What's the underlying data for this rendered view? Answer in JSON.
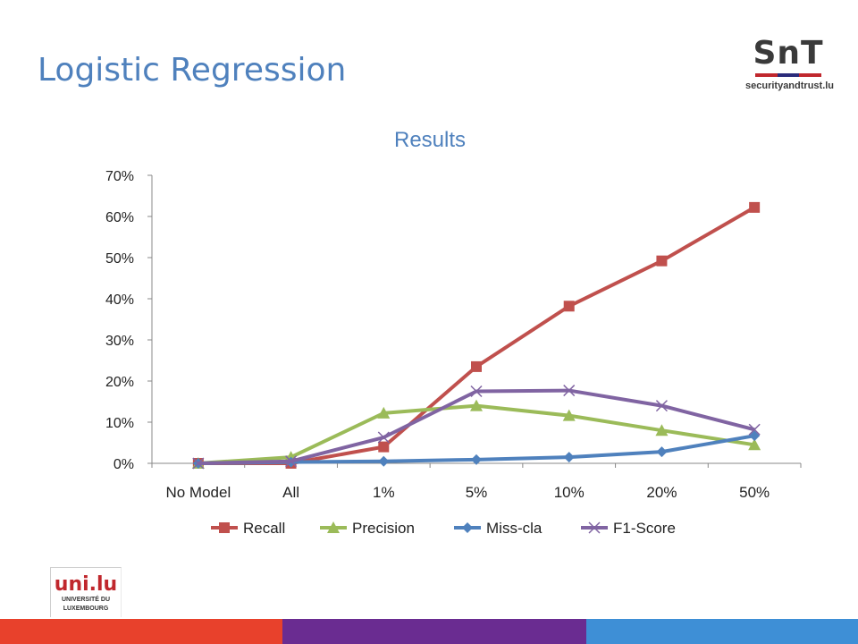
{
  "slide": {
    "title": "Logistic Regression",
    "snt_logo_text": "SnT",
    "snt_logo_url": "securityandtrust.lu",
    "uni_logo_text": "uni.lu",
    "uni_logo_sub1": "UNIVERSITÉ DU",
    "uni_logo_sub2": "LUXEMBOURG",
    "footer_colors": [
      "#e8412c",
      "#6a2c91",
      "#3e8fd6"
    ]
  },
  "chart_data": {
    "type": "line",
    "title": "Results",
    "xlabel": "",
    "ylabel": "",
    "categories": [
      "No Model",
      "All",
      "1%",
      "5%",
      "10%",
      "20%",
      "50%"
    ],
    "ylim": [
      0,
      70
    ],
    "yticks": [
      "0%",
      "10%",
      "20%",
      "30%",
      "40%",
      "50%",
      "60%",
      "70%"
    ],
    "legend_position": "bottom",
    "grid": false,
    "series": [
      {
        "name": "Recall",
        "color": "#c0504d",
        "marker": "square",
        "values": [
          0,
          0,
          4,
          23.5,
          38.2,
          49.2,
          62.2
        ]
      },
      {
        "name": "Precision",
        "color": "#9bbb59",
        "marker": "triangle",
        "values": [
          0,
          1.5,
          12.2,
          14,
          11.6,
          8,
          4.5
        ]
      },
      {
        "name": "Miss-cla",
        "color": "#4f81bd",
        "marker": "diamond",
        "values": [
          0,
          0.3,
          0.5,
          0.9,
          1.5,
          2.8,
          6.7
        ]
      },
      {
        "name": "F1-Score",
        "color": "#8064a2",
        "marker": "x",
        "values": [
          0,
          0.5,
          6.3,
          17.5,
          17.7,
          14,
          8.2
        ]
      }
    ]
  }
}
